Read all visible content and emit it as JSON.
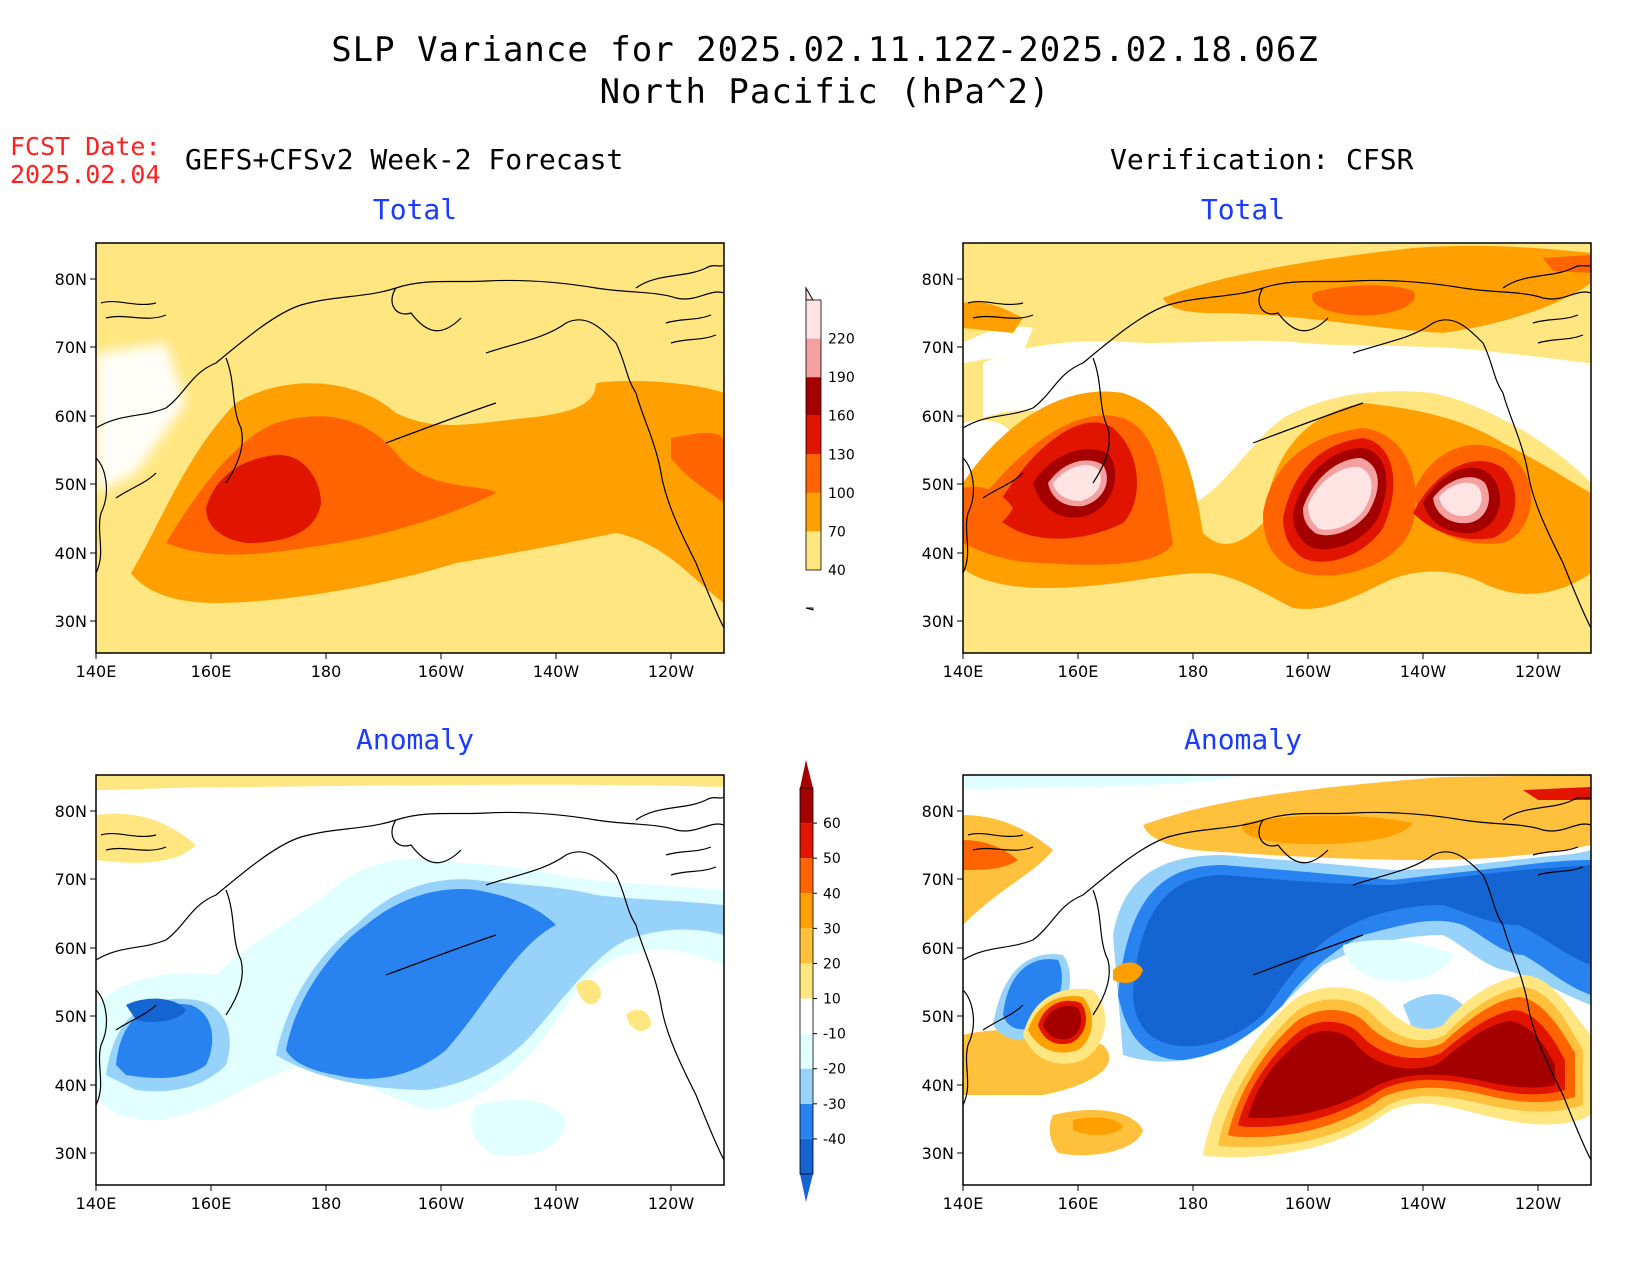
{
  "header": {
    "title_line1": "SLP Variance for 2025.02.11.12Z-2025.02.18.06Z",
    "title_line2": "North Pacific (hPa^2)",
    "fcst_label": "FCST Date:",
    "fcst_date": "2025.02.04"
  },
  "columns": {
    "left": "GEFS+CFSv2 Week-2 Forecast",
    "right": "Verification: CFSR"
  },
  "panels": {
    "forecast_total": {
      "title": "Total"
    },
    "forecast_anomaly": {
      "title": "Anomaly"
    },
    "verification_total": {
      "title": "Total"
    },
    "verification_anomaly": {
      "title": "Anomaly"
    }
  },
  "axes": {
    "lat_labels": [
      "80N",
      "70N",
      "60N",
      "50N",
      "40N",
      "30N"
    ],
    "lon_labels": [
      "140E",
      "160E",
      "180",
      "160W",
      "140W",
      "120W"
    ]
  },
  "total_colorbar": {
    "levels": [
      "40",
      "70",
      "100",
      "130",
      "160",
      "190",
      "220"
    ],
    "colors": [
      "#ffe680",
      "#ffa000",
      "#ff6400",
      "#e11400",
      "#a50000",
      "#f5a0a0",
      "#ffe4e4"
    ]
  },
  "anomaly_colorbar": {
    "levels": [
      "-40",
      "-30",
      "-20",
      "-10",
      "10",
      "20",
      "30",
      "40",
      "50",
      "60"
    ],
    "colors": [
      "#1464d2",
      "#2882f0",
      "#96d2fa",
      "#e1ffff",
      "#ffffff",
      "#ffe680",
      "#ffc03c",
      "#ffa000",
      "#ff6400",
      "#e11400",
      "#a50000"
    ]
  }
}
